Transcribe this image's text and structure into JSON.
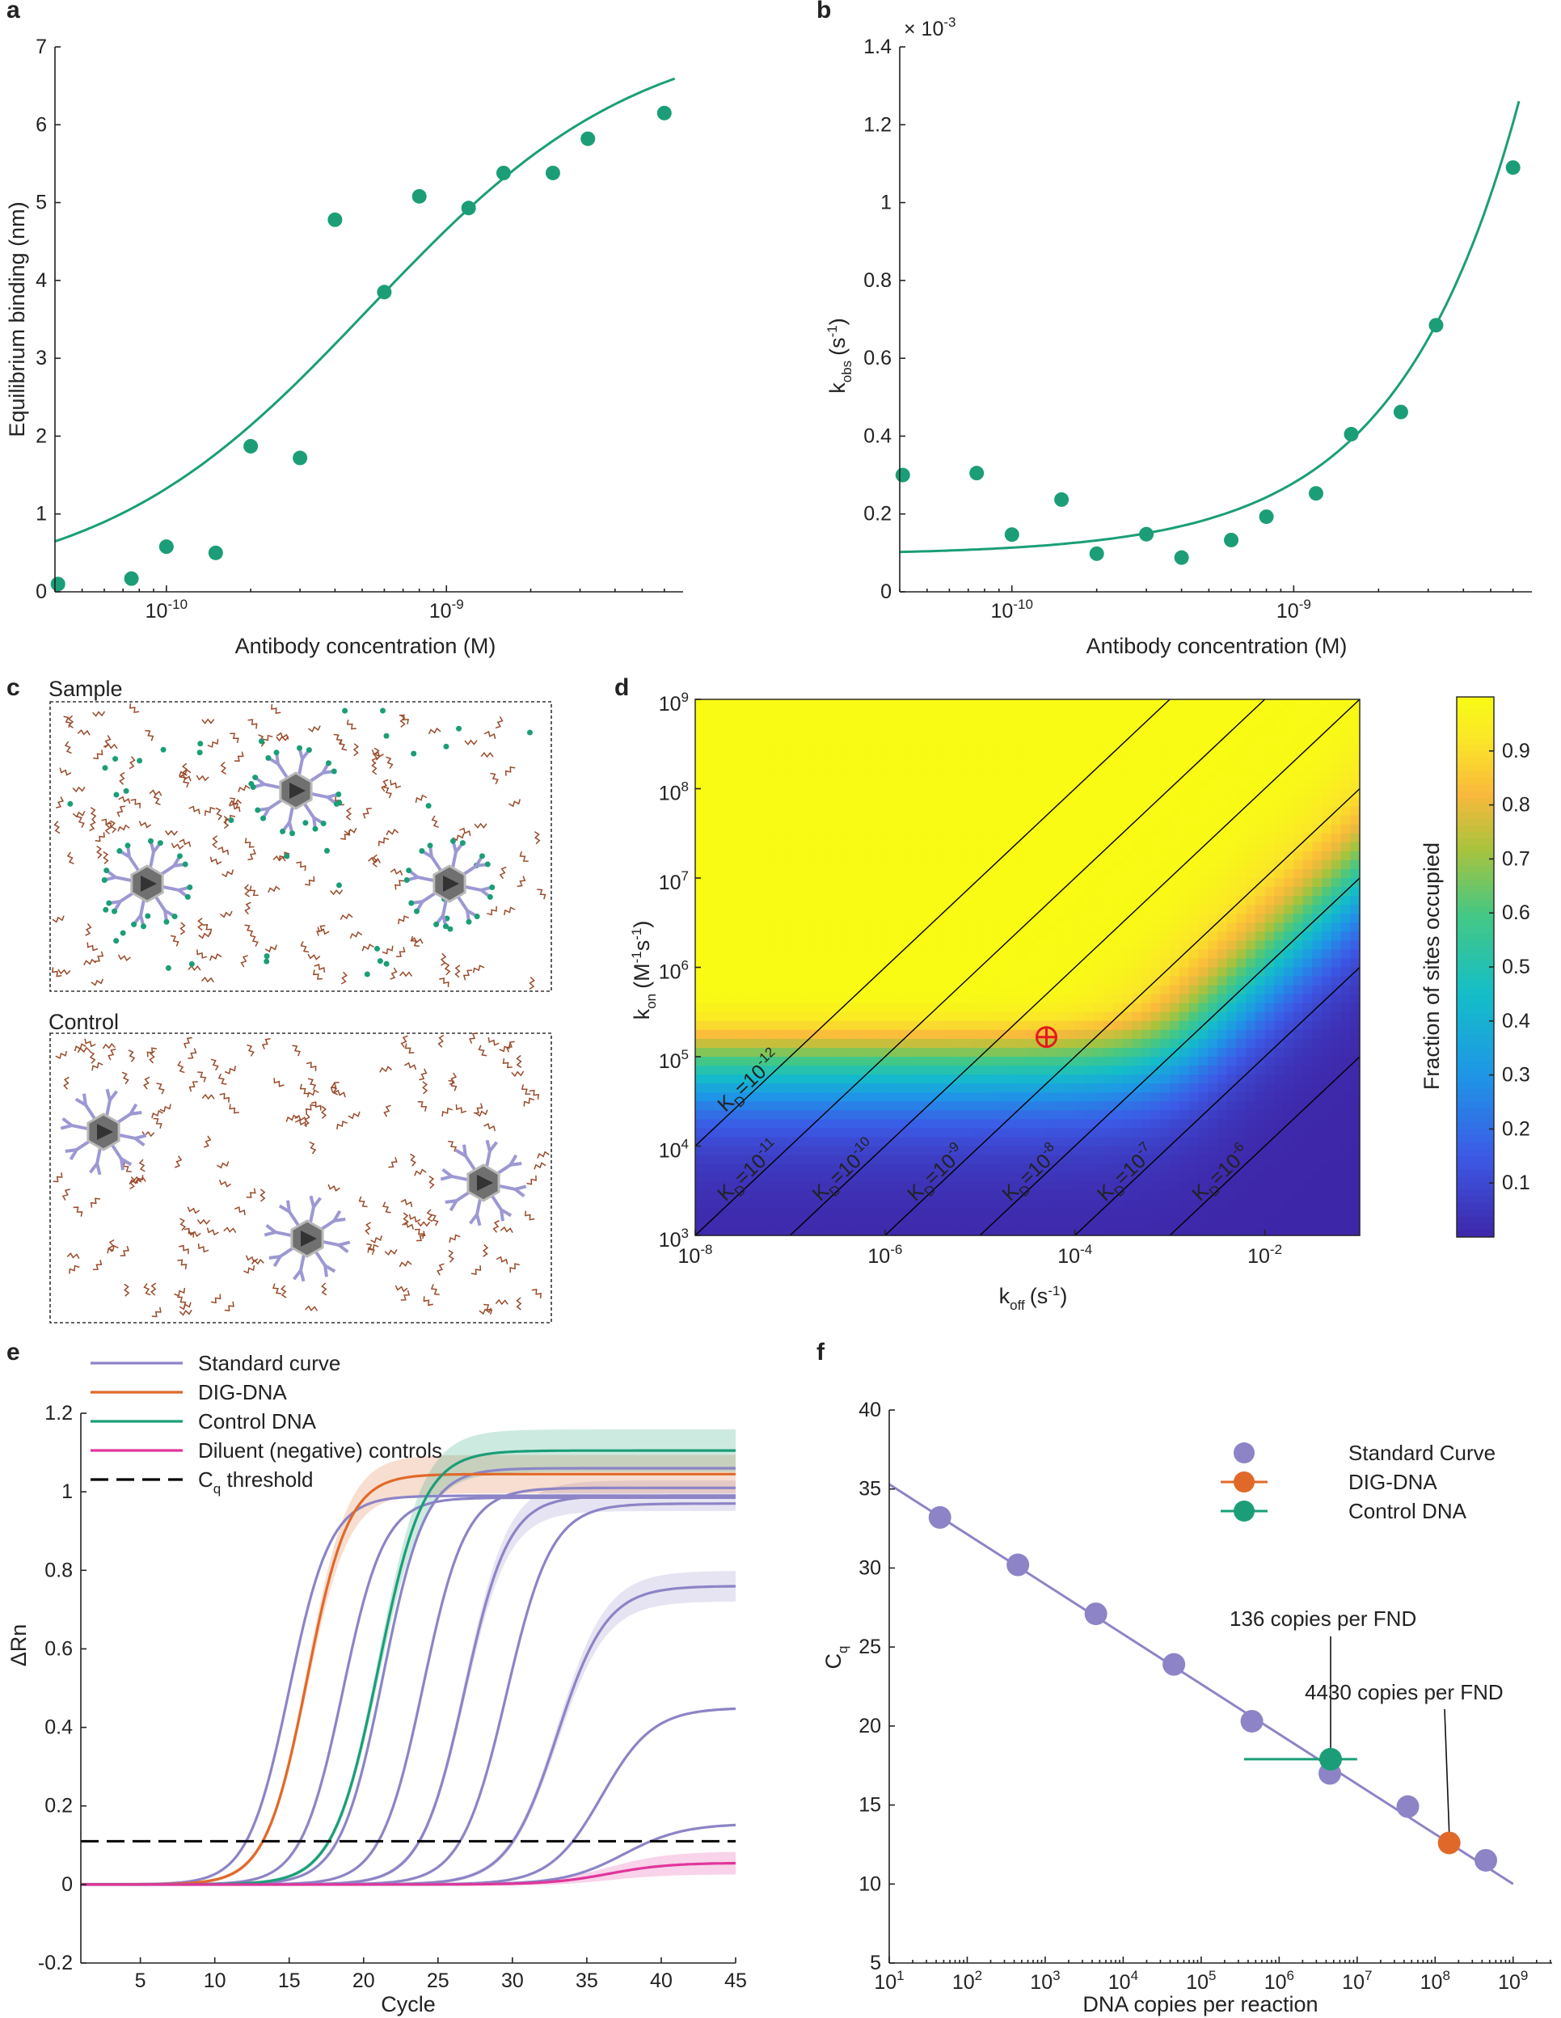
{
  "colors": {
    "teal": "#1b9e77",
    "orange": "#e0692a",
    "purple": "#8c84c6",
    "magenta": "#e0369b",
    "red": "#e31a1c",
    "chain": "#9a4a2a",
    "dot": "#1b9e77",
    "ab": "#9c98d3",
    "nd": "#707070",
    "black": "#000000"
  },
  "panels": {
    "a": "a",
    "b": "b",
    "c": "c",
    "d": "d",
    "e": "e",
    "f": "f"
  },
  "schematic": {
    "sample_label": "Sample",
    "control_label": "Control"
  },
  "chart_data": [
    {
      "id": "a",
      "type": "scatter",
      "title": "",
      "xlabel": "Antibody concentration (M)",
      "ylabel": "Equilibrium binding (nm)",
      "xscale": "log",
      "xlim": [
        4e-11,
        7e-09
      ],
      "ylim": [
        0,
        7
      ],
      "yticks": [
        0,
        1,
        2,
        3,
        4,
        5,
        6,
        7
      ],
      "xticks": [
        {
          "value": 1e-10,
          "base": "10",
          "exp": "-10"
        },
        {
          "value": 1e-09,
          "base": "10",
          "exp": "-9"
        }
      ],
      "points": {
        "x": [
          4.1e-11,
          7.5e-11,
          1e-10,
          1.5e-10,
          2e-10,
          3e-10,
          4e-10,
          6e-10,
          8e-10,
          1.2e-09,
          1.6e-09,
          2.4e-09,
          3.2e-09,
          6e-09
        ],
        "y": [
          0.1,
          0.17,
          0.58,
          0.5,
          1.87,
          1.72,
          4.78,
          3.85,
          5.08,
          4.93,
          5.38,
          5.38,
          5.82,
          6.15
        ]
      },
      "fit": {
        "model": "hill",
        "bmax": 7.28,
        "kd": 5.3e-10,
        "n": 0.9
      }
    },
    {
      "id": "b",
      "type": "scatter",
      "title": "",
      "xlabel": "Antibody concentration (M)",
      "ylabel_main": "k",
      "ylabel_sub": "obs",
      "ylabel_units": "(s",
      "ylabel_exp": "-1",
      "ylabel_close": ")",
      "multiplier_base": "× 10",
      "multiplier_exp": "-3",
      "xscale": "log",
      "xlim": [
        4e-11,
        7e-09
      ],
      "ylim": [
        0,
        1.4
      ],
      "yticks": [
        0,
        0.2,
        0.4,
        0.6,
        0.8,
        1,
        1.2,
        1.4
      ],
      "xticks": [
        {
          "value": 1e-10,
          "base": "10",
          "exp": "-10"
        },
        {
          "value": 1e-09,
          "base": "10",
          "exp": "-9"
        }
      ],
      "points": {
        "x": [
          4.1e-11,
          7.5e-11,
          1e-10,
          1.5e-10,
          2e-10,
          3e-10,
          4e-10,
          6e-10,
          8e-10,
          1.2e-09,
          1.6e-09,
          2.4e-09,
          3.2e-09,
          6e-09
        ],
        "y": [
          0.3,
          0.305,
          0.147,
          0.237,
          0.098,
          0.148,
          0.088,
          0.133,
          0.193,
          0.253,
          0.405,
          0.462,
          0.685,
          1.09
        ]
      },
      "fit": {
        "model": "linear",
        "slope_per_M": 185000000.0,
        "intercept": 0.095
      }
    },
    {
      "id": "d",
      "type": "heatmap",
      "title": "",
      "xlabel_main": "k",
      "xlabel_sub": "off",
      "xlabel_units": "(s",
      "xlabel_exp": "-1",
      "xlabel_close": ")",
      "ylabel_main": "k",
      "ylabel_sub": "on",
      "ylabel_units": "(M",
      "ylabel_exp1": "-1",
      "ylabel_mid": "s",
      "ylabel_exp2": "-1",
      "ylabel_close": ")",
      "xlim_log10": [
        -8,
        -1
      ],
      "ylim_log10": [
        3,
        9
      ],
      "xticks": [
        {
          "log": -8,
          "base": "10",
          "exp": "-8"
        },
        {
          "log": -6,
          "base": "10",
          "exp": "-6"
        },
        {
          "log": -4,
          "base": "10",
          "exp": "-4"
        },
        {
          "log": -2,
          "base": "10",
          "exp": "-2"
        }
      ],
      "yticks": [
        {
          "log": 3,
          "base": "10",
          "exp": "3"
        },
        {
          "log": 4,
          "base": "10",
          "exp": "4"
        },
        {
          "log": 5,
          "base": "10",
          "exp": "5"
        },
        {
          "log": 6,
          "base": "10",
          "exp": "6"
        },
        {
          "log": 7,
          "base": "10",
          "exp": "7"
        },
        {
          "log": 8,
          "base": "10",
          "exp": "8"
        },
        {
          "log": 9,
          "base": "10",
          "exp": "9"
        }
      ],
      "kd_lines": [
        {
          "log": -12,
          "label": "K",
          "sub": "D",
          "eq": "=10",
          "exp": "-12"
        },
        {
          "log": -11,
          "label": "K",
          "sub": "D",
          "eq": "=10",
          "exp": "-11"
        },
        {
          "log": -10,
          "label": "K",
          "sub": "D",
          "eq": "=10",
          "exp": "-10"
        },
        {
          "log": -9,
          "label": "K",
          "sub": "D",
          "eq": "=10",
          "exp": "-9"
        },
        {
          "log": -8,
          "label": "K",
          "sub": "D",
          "eq": "=10",
          "exp": "-8"
        },
        {
          "log": -7,
          "label": "K",
          "sub": "D",
          "eq": "=10",
          "exp": "-7"
        },
        {
          "log": -6,
          "label": "K",
          "sub": "D",
          "eq": "=10",
          "exp": "-6"
        }
      ],
      "marker": {
        "log_koff": -4.3,
        "log_kon": 5.22
      },
      "colorbar": {
        "label": "Fraction of sites occupied",
        "ticks": [
          "0.1",
          "0.2",
          "0.3",
          "0.4",
          "0.5",
          "0.6",
          "0.7",
          "0.8",
          "0.9"
        ],
        "range": [
          0,
          1
        ]
      },
      "model": {
        "concentration_M": 1e-08,
        "time_s": 1000
      }
    },
    {
      "id": "e",
      "type": "line",
      "title": "",
      "xlabel": "Cycle",
      "ylabel": "ΔRn",
      "xlim": [
        1,
        45
      ],
      "ylim": [
        -0.2,
        1.2
      ],
      "xticks": [
        5,
        10,
        15,
        20,
        25,
        30,
        35,
        40,
        45
      ],
      "yticks": [
        "-0.2",
        "0",
        "0.2",
        "0.4",
        "0.6",
        "0.8",
        "1",
        "1.2"
      ],
      "threshold": 0.11,
      "legend": [
        {
          "label": "Standard curve",
          "color": "#8c84c6"
        },
        {
          "label": "DIG-DNA",
          "color": "#e0692a"
        },
        {
          "label": "Control DNA",
          "color": "#1b9e77"
        },
        {
          "label": "Diluent (negative) controls",
          "color": "#e0369b"
        },
        {
          "label_main": "C",
          "label_sub": "q",
          "label_rest": " threshold",
          "color": "#000000",
          "dashed": true
        }
      ],
      "series": [
        {
          "name": "Standard curve",
          "midpoint": 15.0,
          "plateau": 0.99,
          "slope": 0.72,
          "band": 0.0
        },
        {
          "name": "Standard curve",
          "midpoint": 18.6,
          "plateau": 0.985,
          "slope": 0.72,
          "band": 0.0
        },
        {
          "name": "Standard curve",
          "midpoint": 21.3,
          "plateau": 1.06,
          "slope": 0.7,
          "band": 0.0
        },
        {
          "name": "Standard curve",
          "midpoint": 24.0,
          "plateau": 1.01,
          "slope": 0.7,
          "band": 0.0
        },
        {
          "name": "Standard curve",
          "midpoint": 26.8,
          "plateau": 0.99,
          "slope": 0.68,
          "band": 0.035
        },
        {
          "name": "Standard curve",
          "midpoint": 29.6,
          "plateau": 0.97,
          "slope": 0.66,
          "band": 0.0
        },
        {
          "name": "Standard curve",
          "midpoint": 33.0,
          "plateau": 0.76,
          "slope": 0.6,
          "band": 0.035
        },
        {
          "name": "Standard curve",
          "midpoint": 36.0,
          "plateau": 0.45,
          "slope": 0.58,
          "band": 0.0
        },
        {
          "name": "Standard curve",
          "midpoint": 37.5,
          "plateau": 0.155,
          "slope": 0.5,
          "band": 0.0
        },
        {
          "name": "DIG-DNA",
          "midpoint": 16.2,
          "plateau": 1.045,
          "slope": 0.72,
          "band": 0.045
        },
        {
          "name": "Control DNA",
          "midpoint": 21.0,
          "plateau": 1.105,
          "slope": 0.66,
          "band": 0.05
        },
        {
          "name": "Diluent (negative) controls",
          "midpoint": 36.5,
          "plateau": 0.055,
          "slope": 0.5,
          "band": 0.025
        }
      ]
    },
    {
      "id": "f",
      "type": "scatter",
      "title": "",
      "xlabel": "DNA copies per reaction",
      "ylabel_main": "C",
      "ylabel_sub": "q",
      "xscale": "log",
      "xlim_log10": [
        1,
        9.5
      ],
      "ylim": [
        5,
        40
      ],
      "yticks": [
        5,
        10,
        15,
        20,
        25,
        30,
        35,
        40
      ],
      "xticks": [
        {
          "log": 1,
          "base": "10",
          "exp": "1"
        },
        {
          "log": 2,
          "base": "10",
          "exp": "2"
        },
        {
          "log": 3,
          "base": "10",
          "exp": "3"
        },
        {
          "log": 4,
          "base": "10",
          "exp": "4"
        },
        {
          "log": 5,
          "base": "10",
          "exp": "5"
        },
        {
          "log": 6,
          "base": "10",
          "exp": "6"
        },
        {
          "log": 7,
          "base": "10",
          "exp": "7"
        },
        {
          "log": 8,
          "base": "10",
          "exp": "8"
        },
        {
          "log": 9,
          "base": "10",
          "exp": "9"
        }
      ],
      "fit": {
        "log_x": [
          1,
          9
        ],
        "y": [
          35.3,
          10.0
        ]
      },
      "standard_points": {
        "log_x": [
          1.65,
          2.65,
          3.65,
          4.65,
          5.65,
          6.65,
          7.65,
          8.65
        ],
        "y": [
          33.2,
          30.2,
          27.1,
          23.9,
          20.3,
          17.0,
          14.9,
          11.5
        ]
      },
      "dig_point": {
        "log_x": 8.18,
        "y": 12.6
      },
      "control_point": {
        "log_x": 6.66,
        "y": 17.9,
        "xerr_log": [
          5.55,
          7.0
        ]
      },
      "legend": [
        {
          "label": "Standard Curve",
          "color": "#8c84c6"
        },
        {
          "label": "DIG-DNA",
          "color": "#e0692a"
        },
        {
          "label": "Control DNA",
          "color": "#1b9e77"
        }
      ],
      "annotations": [
        {
          "text": "136 copies per FND",
          "target": "control"
        },
        {
          "text": "4430 copies per FND",
          "target": "dig"
        }
      ]
    }
  ]
}
